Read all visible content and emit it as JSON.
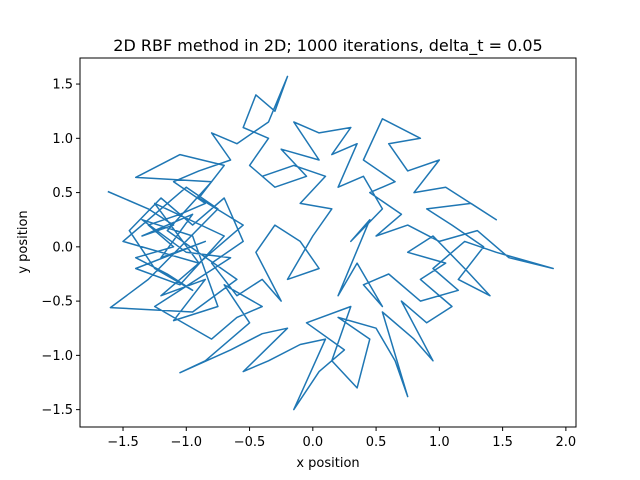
{
  "chart_data": {
    "type": "line",
    "title": "2D RBF method in 2D; 1000 iterations, delta_t = 0.05",
    "xlabel": "x position",
    "ylabel": "y position",
    "xlim": [
      -1.84,
      2.08
    ],
    "ylim": [
      -1.66,
      1.74
    ],
    "xticks": [
      -1.5,
      -1.0,
      -0.5,
      0.0,
      0.5,
      1.0,
      1.5,
      2.0
    ],
    "xtick_labels": [
      "−1.5",
      "−1.0",
      "−0.5",
      "0.0",
      "0.5",
      "1.0",
      "1.5",
      "2.0"
    ],
    "yticks": [
      -1.5,
      -1.0,
      -0.5,
      0.0,
      0.5,
      1.0,
      1.5
    ],
    "ytick_labels": [
      "−1.5",
      "−1.0",
      "−0.5",
      "0.0",
      "0.5",
      "1.0",
      "1.5"
    ],
    "grid": false,
    "legend": "none",
    "series": [
      {
        "color": "#1f77b4",
        "points": [
          [
            -1.62,
            0.51
          ],
          [
            -1.3,
            0.35
          ],
          [
            -1.1,
            0.2
          ],
          [
            -1.35,
            0.1
          ],
          [
            -0.95,
            0.3
          ],
          [
            -1.2,
            -0.1
          ],
          [
            -0.85,
            0.05
          ],
          [
            -1.4,
            -0.2
          ],
          [
            -1.05,
            -0.35
          ],
          [
            -0.7,
            0.1
          ],
          [
            -1.25,
            0.4
          ],
          [
            -0.9,
            -0.15
          ],
          [
            -1.5,
            0.05
          ],
          [
            -1.0,
            0.55
          ],
          [
            -0.75,
            0.35
          ],
          [
            -1.3,
            -0.3
          ],
          [
            -1.6,
            -0.56
          ],
          [
            -0.95,
            -0.6
          ],
          [
            -0.6,
            -0.3
          ],
          [
            -1.15,
            0.15
          ],
          [
            -0.8,
            0.6
          ],
          [
            -1.4,
            0.64
          ],
          [
            -1.05,
            0.85
          ],
          [
            -0.7,
            0.75
          ],
          [
            -0.9,
            0.45
          ],
          [
            -0.55,
            0.2
          ],
          [
            -1.2,
            -0.45
          ],
          [
            -0.85,
            -0.3
          ],
          [
            -1.1,
            -0.68
          ],
          [
            -0.75,
            -0.55
          ],
          [
            -0.95,
            0.1
          ],
          [
            -1.35,
            0.25
          ],
          [
            -1.0,
            -0.05
          ],
          [
            -0.65,
            -0.1
          ],
          [
            -1.25,
            -0.55
          ],
          [
            -0.8,
            -0.85
          ],
          [
            -0.6,
            -0.65
          ],
          [
            -0.4,
            -0.55
          ],
          [
            -0.7,
            -0.35
          ],
          [
            -0.5,
            -0.7
          ],
          [
            -0.85,
            -1.05
          ],
          [
            -1.05,
            -1.16
          ],
          [
            -0.65,
            -0.95
          ],
          [
            -0.4,
            -0.8
          ],
          [
            -0.2,
            -0.75
          ],
          [
            -0.55,
            -1.15
          ],
          [
            -0.35,
            -1.05
          ],
          [
            -0.1,
            -0.9
          ],
          [
            0.1,
            -0.85
          ],
          [
            -0.15,
            -1.5
          ],
          [
            0.05,
            -1.15
          ],
          [
            0.25,
            -0.95
          ],
          [
            -0.05,
            -0.7
          ],
          [
            0.3,
            -0.55
          ],
          [
            0.15,
            -1.05
          ],
          [
            0.35,
            -1.3
          ],
          [
            0.45,
            -0.85
          ],
          [
            0.2,
            -0.65
          ],
          [
            0.5,
            -0.75
          ],
          [
            0.65,
            -1.05
          ],
          [
            0.75,
            -1.38
          ],
          [
            0.55,
            -0.6
          ],
          [
            0.8,
            -0.85
          ],
          [
            0.95,
            -1.05
          ],
          [
            0.7,
            -0.5
          ],
          [
            0.9,
            -0.7
          ],
          [
            1.1,
            -0.55
          ],
          [
            0.85,
            -0.3
          ],
          [
            1.05,
            -0.15
          ],
          [
            0.75,
            -0.05
          ],
          [
            0.95,
            0.1
          ],
          [
            1.2,
            -0.2
          ],
          [
            1.4,
            -0.45
          ],
          [
            1.15,
            -0.3
          ],
          [
            1.35,
            0.0
          ],
          [
            1.1,
            0.2
          ],
          [
            0.9,
            0.35
          ],
          [
            1.25,
            0.4
          ],
          [
            1.45,
            0.25
          ],
          [
            1.05,
            0.55
          ],
          [
            0.8,
            0.5
          ],
          [
            1.0,
            0.8
          ],
          [
            0.75,
            0.7
          ],
          [
            0.6,
            0.95
          ],
          [
            0.85,
            1.0
          ],
          [
            0.55,
            1.18
          ],
          [
            0.4,
            0.8
          ],
          [
            0.65,
            0.6
          ],
          [
            0.45,
            0.5
          ],
          [
            0.7,
            0.3
          ],
          [
            0.5,
            0.1
          ],
          [
            0.75,
            0.2
          ],
          [
            1.0,
            0.05
          ],
          [
            1.3,
            0.15
          ],
          [
            1.55,
            -0.1
          ],
          [
            1.9,
            -0.2
          ],
          [
            1.45,
            -0.05
          ],
          [
            1.2,
            0.05
          ],
          [
            0.95,
            -0.2
          ],
          [
            1.15,
            -0.4
          ],
          [
            0.85,
            -0.5
          ],
          [
            0.6,
            -0.25
          ],
          [
            0.4,
            -0.35
          ],
          [
            0.55,
            -0.55
          ],
          [
            0.35,
            -0.15
          ],
          [
            0.2,
            -0.45
          ],
          [
            0.45,
            0.25
          ],
          [
            0.3,
            0.05
          ],
          [
            0.55,
            0.35
          ],
          [
            0.4,
            0.65
          ],
          [
            0.2,
            0.55
          ],
          [
            0.35,
            0.95
          ],
          [
            0.15,
            0.85
          ],
          [
            0.3,
            1.1
          ],
          [
            0.05,
            1.05
          ],
          [
            -0.15,
            1.15
          ],
          [
            0.05,
            0.8
          ],
          [
            -0.25,
            0.9
          ],
          [
            -0.05,
            0.65
          ],
          [
            -0.3,
            0.55
          ],
          [
            -0.5,
            0.75
          ],
          [
            -0.35,
            1.0
          ],
          [
            -0.55,
            1.1
          ],
          [
            -0.45,
            1.4
          ],
          [
            -0.3,
            1.25
          ],
          [
            -0.2,
            1.57
          ],
          [
            -0.35,
            1.15
          ],
          [
            -0.6,
            0.95
          ],
          [
            -0.8,
            1.05
          ],
          [
            -0.65,
            0.8
          ],
          [
            -0.9,
            0.7
          ],
          [
            -1.1,
            0.6
          ],
          [
            -0.85,
            0.4
          ],
          [
            -1.05,
            0.3
          ],
          [
            -1.3,
            0.2
          ],
          [
            -1.1,
            0.0
          ],
          [
            -1.4,
            -0.1
          ],
          [
            -1.15,
            -0.25
          ],
          [
            -0.95,
            -0.4
          ],
          [
            -1.25,
            -0.2
          ],
          [
            -1.45,
            0.15
          ],
          [
            -1.2,
            0.45
          ],
          [
            -0.95,
            0.2
          ],
          [
            -0.7,
            0.45
          ],
          [
            -0.55,
            0.05
          ],
          [
            -0.8,
            -0.15
          ],
          [
            -0.6,
            -0.45
          ],
          [
            -0.4,
            -0.3
          ],
          [
            -0.25,
            -0.5
          ],
          [
            -0.45,
            -0.05
          ],
          [
            -0.3,
            0.2
          ],
          [
            -0.1,
            0.05
          ],
          [
            0.05,
            -0.2
          ],
          [
            -0.2,
            -0.3
          ],
          [
            0.0,
            0.1
          ],
          [
            0.15,
            0.35
          ],
          [
            -0.1,
            0.4
          ],
          [
            0.1,
            0.65
          ],
          [
            -0.15,
            0.75
          ],
          [
            -0.4,
            0.65
          ]
        ]
      }
    ]
  }
}
